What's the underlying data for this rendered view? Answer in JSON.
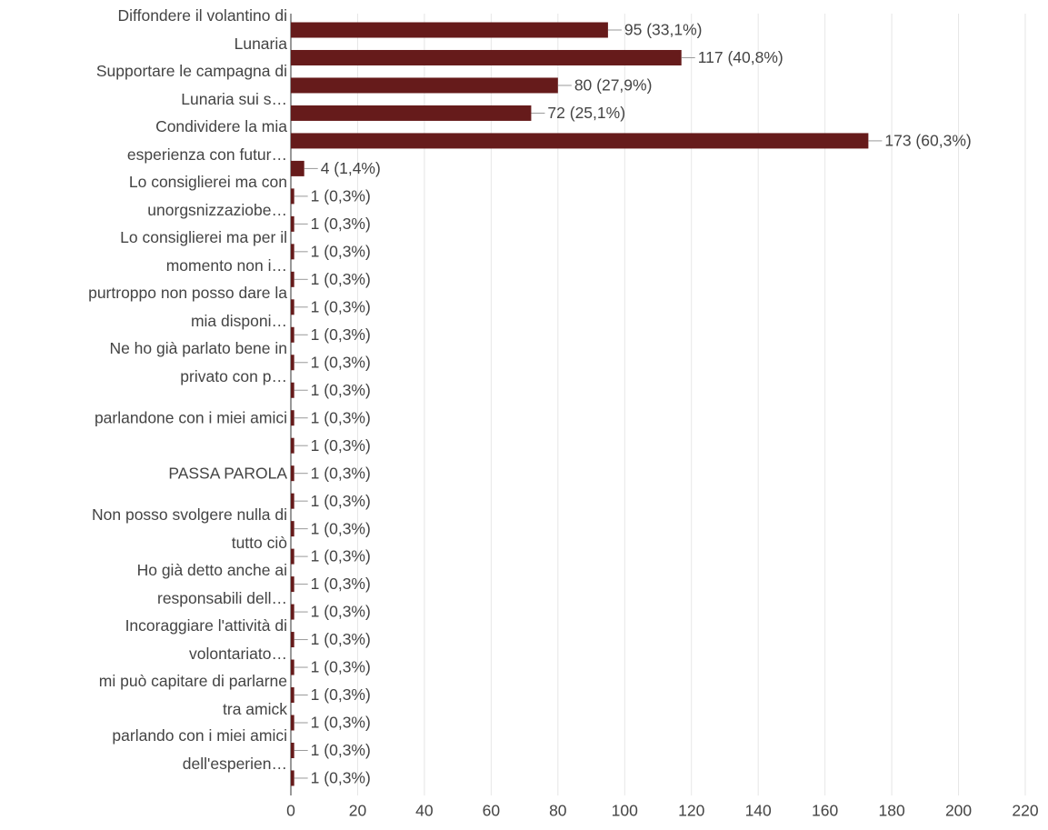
{
  "chart_data": {
    "type": "bar",
    "orientation": "horizontal",
    "categories": [
      "Diffondere il volantino di Lunaria",
      null,
      "Supportare le campagna di Lunaria sui s…",
      null,
      "Condividere la mia esperienza con futur…",
      null,
      "Lo consiglierei ma con unorgsnizzaziobe…",
      null,
      "Lo consiglierei ma per il momento non i…",
      null,
      "purtroppo non posso dare la mia disponi…",
      null,
      "Ne ho già parlato bene in privato con p…",
      null,
      "parlandone con i miei amici",
      null,
      "PASSA PAROLA",
      null,
      "Non posso svolgere nulla di tutto ciò",
      null,
      "Ho già detto anche ai responsabili dell…",
      null,
      "Incoraggiare l'attività di volontariato…",
      null,
      "mi può capitare di parlarne tra amick",
      null,
      "parlando con i miei amici dell'esperien…",
      null
    ],
    "values": [
      95,
      117,
      80,
      72,
      173,
      4,
      1,
      1,
      1,
      1,
      1,
      1,
      1,
      1,
      1,
      1,
      1,
      1,
      1,
      1,
      1,
      1,
      1,
      1,
      1,
      1,
      1,
      1
    ],
    "value_labels": [
      "95 (33,1%)",
      "117 (40,8%)",
      "80 (27,9%)",
      "72 (25,1%)",
      "173 (60,3%)",
      "4 (1,4%)",
      "1 (0,3%)",
      "1 (0,3%)",
      "1 (0,3%)",
      "1 (0,3%)",
      "1 (0,3%)",
      "1 (0,3%)",
      "1 (0,3%)",
      "1 (0,3%)",
      "1 (0,3%)",
      "1 (0,3%)",
      "1 (0,3%)",
      "1 (0,3%)",
      "1 (0,3%)",
      "1 (0,3%)",
      "1 (0,3%)",
      "1 (0,3%)",
      "1 (0,3%)",
      "1 (0,3%)",
      "1 (0,3%)",
      "1 (0,3%)",
      "1 (0,3%)",
      "1 (0,3%)"
    ],
    "color": "#661b1b",
    "xlim": [
      0,
      220
    ],
    "xticks": [
      0,
      20,
      40,
      60,
      80,
      100,
      120,
      140,
      160,
      180,
      200,
      220
    ],
    "grid": true
  }
}
